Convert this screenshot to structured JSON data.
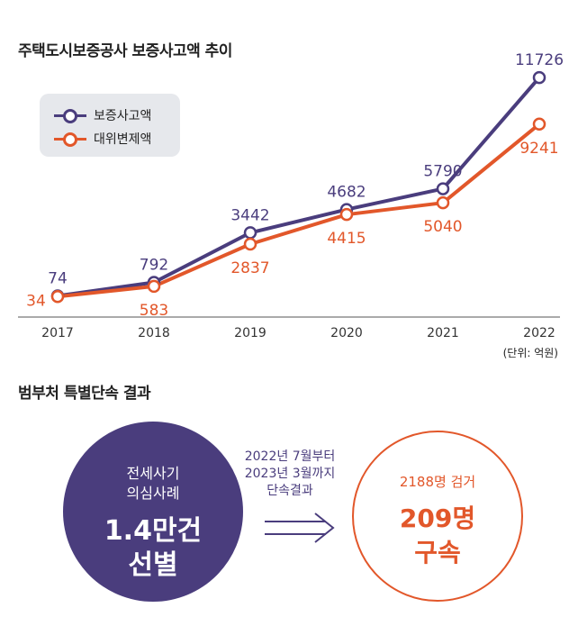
{
  "chart": {
    "title": "주택도시보증공사 보증사고액 추이",
    "unit": "(단위: 억원)"
  },
  "chart_data": {
    "type": "line",
    "title": "주택도시보증공사 보증사고액 추이",
    "categories": [
      "2017",
      "2018",
      "2019",
      "2020",
      "2021",
      "2022"
    ],
    "series": [
      {
        "name": "보증사고액",
        "color": "#4a3d7d",
        "values": [
          74,
          792,
          3442,
          4682,
          5790,
          11726
        ]
      },
      {
        "name": "대위변제액",
        "color": "#e2572a",
        "values": [
          34,
          583,
          2837,
          4415,
          5040,
          9241
        ]
      }
    ],
    "ylim": [
      0,
      12500
    ],
    "unit": "(단위: 억원)",
    "grid": false,
    "legend": "top-left"
  },
  "crackdown": {
    "title": "범부처 특별단속 결과",
    "left_line1": "전세사기",
    "left_line2": "의심사례",
    "left_big1": "1.4만건",
    "left_big2": "선별",
    "mid_line1": "2022년 7월부터",
    "mid_line2": "2023년 3월까지",
    "mid_line3": "단속결과",
    "right_small": "2188명 검거",
    "right_big1": "209명",
    "right_big2": "구속"
  },
  "colors": {
    "primary": "#4a3d7d",
    "accent": "#e2572a",
    "legend_bg": "#e6e8ec"
  }
}
